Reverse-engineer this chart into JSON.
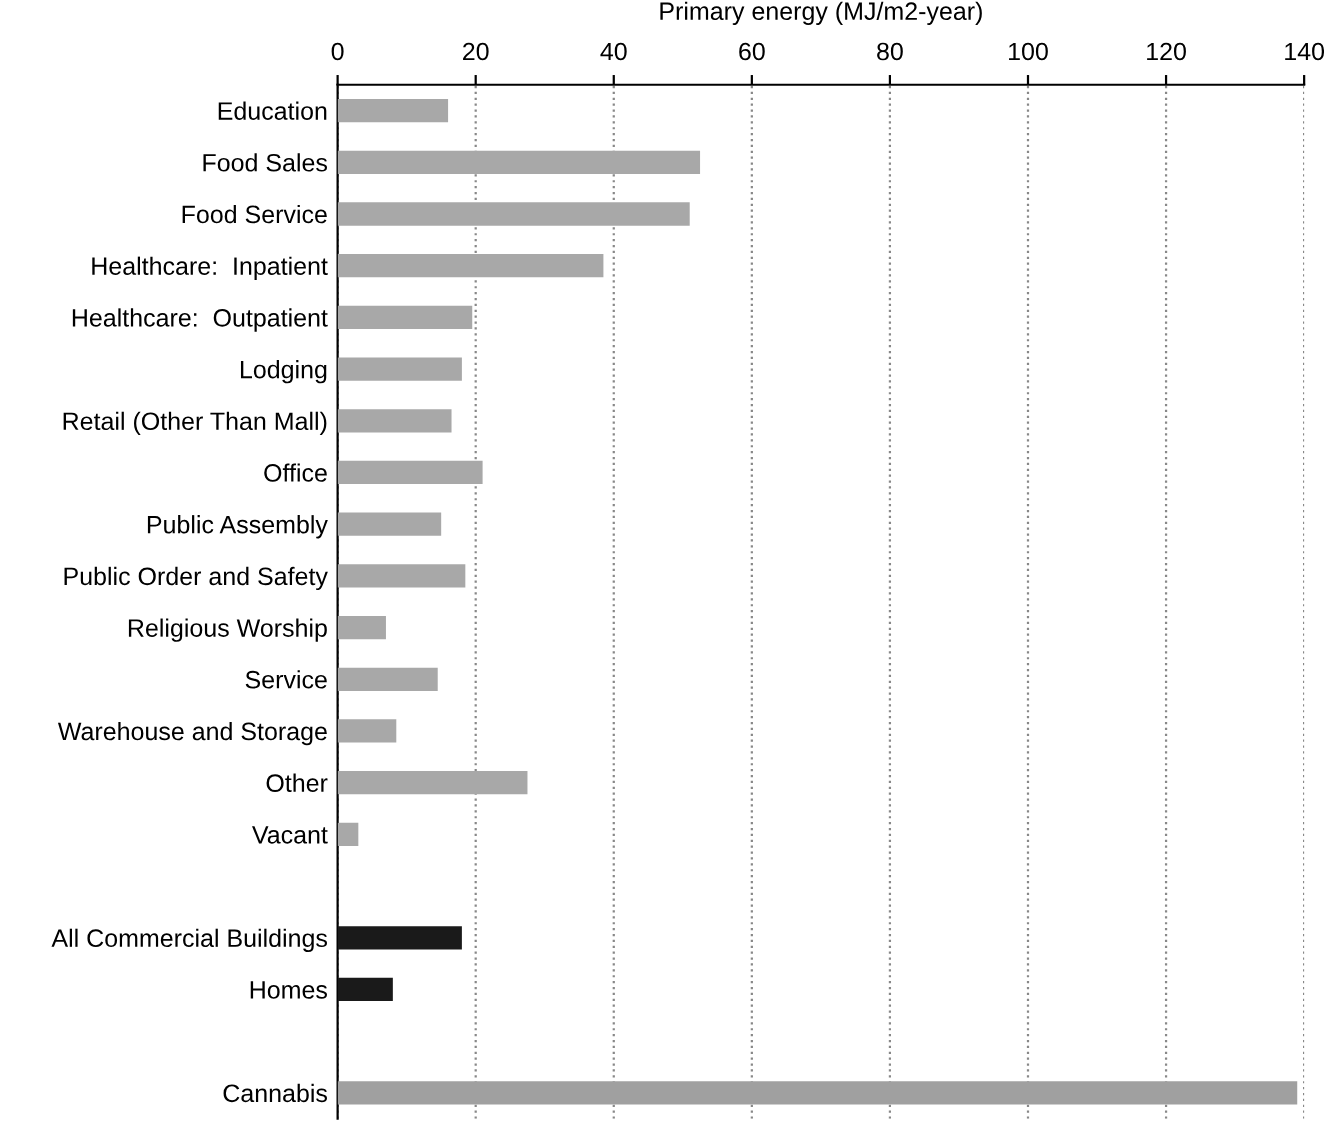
{
  "chart_data": {
    "type": "bar",
    "orientation": "horizontal",
    "xlabel": "Primary energy (MJ/m2-year)",
    "categories": [
      "Education",
      "Food Sales",
      "Food Service",
      "Healthcare:  Inpatient",
      "Healthcare:  Outpatient",
      "Lodging",
      "Retail (Other Than Mall)",
      "Office",
      "Public Assembly",
      "Public Order and Safety",
      "Religious Worship",
      "Service",
      "Warehouse and Storage",
      "Other",
      "Vacant",
      null,
      "All Commercial Buildings",
      "Homes",
      null,
      "Cannabis"
    ],
    "values": [
      16,
      52.5,
      51,
      38.5,
      19.5,
      18,
      16.5,
      21,
      15,
      18.5,
      7,
      14.5,
      8.5,
      27.5,
      3,
      null,
      18,
      8,
      null,
      139
    ],
    "colors": [
      "#a8a8a8",
      "#a8a8a8",
      "#a8a8a8",
      "#a8a8a8",
      "#a8a8a8",
      "#a8a8a8",
      "#a8a8a8",
      "#a8a8a8",
      "#a8a8a8",
      "#a8a8a8",
      "#a8a8a8",
      "#a8a8a8",
      "#a8a8a8",
      "#a8a8a8",
      "#a8a8a8",
      "#a8a8a8",
      "#1a1a1a",
      "#1a1a1a",
      "#a8a8a8",
      "#a0a0a0"
    ],
    "xlim": [
      0,
      140
    ],
    "xticks": [
      0,
      20,
      40,
      60,
      80,
      100,
      120,
      140
    ],
    "grid": "x"
  }
}
